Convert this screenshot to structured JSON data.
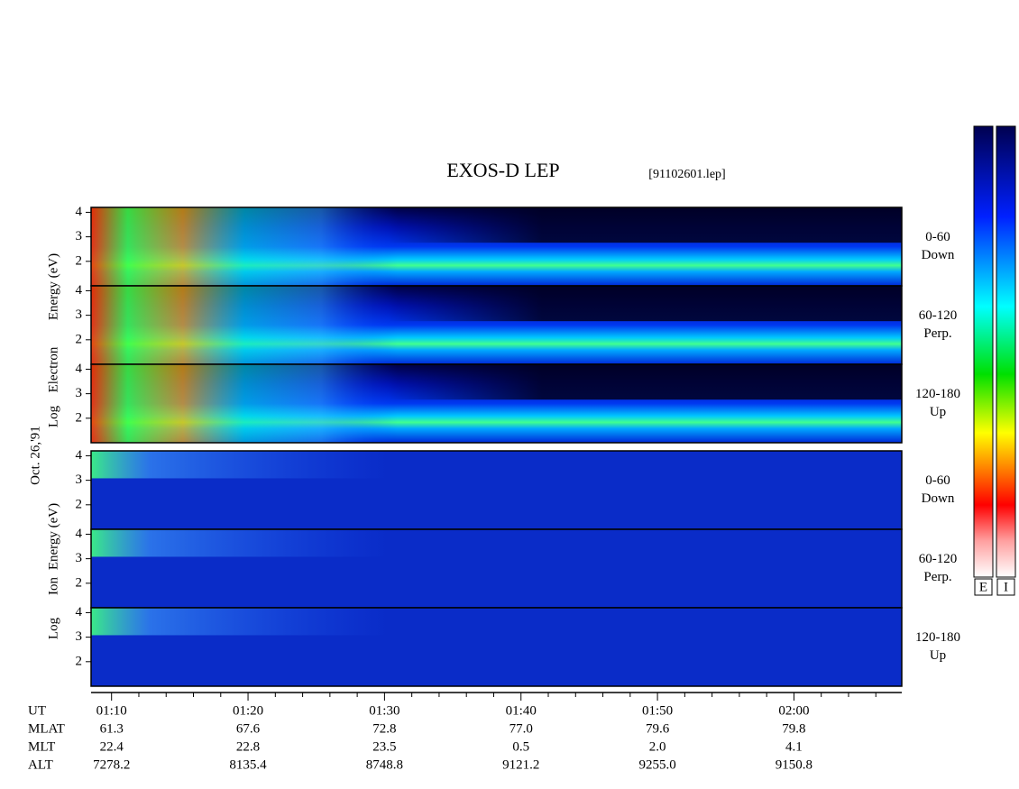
{
  "title": "EXOS-D LEP",
  "file_label": "[91102601.lep]",
  "date_label": "Oct. 26,'91",
  "electron_axis_labels": [
    "Log",
    "Electron",
    "Energy (eV)"
  ],
  "ion_axis_labels": [
    "Log",
    "Ion",
    "Energy (eV)"
  ],
  "panels": [
    {
      "species": "electron",
      "pitch_angle": "0-60",
      "direction": "Down",
      "ylim": [
        1,
        4.2
      ],
      "yticks": [
        2,
        3,
        4
      ]
    },
    {
      "species": "electron",
      "pitch_angle": "60-120",
      "direction": "Perp.",
      "ylim": [
        1,
        4.2
      ],
      "yticks": [
        2,
        3,
        4
      ]
    },
    {
      "species": "electron",
      "pitch_angle": "120-180",
      "direction": "Up",
      "ylim": [
        1,
        4.2
      ],
      "yticks": [
        2,
        3,
        4
      ]
    },
    {
      "species": "ion",
      "pitch_angle": "0-60",
      "direction": "Down",
      "ylim": [
        1,
        4.2
      ],
      "yticks": [
        2,
        3,
        4
      ]
    },
    {
      "species": "ion",
      "pitch_angle": "60-120",
      "direction": "Perp.",
      "ylim": [
        1,
        4.2
      ],
      "yticks": [
        2,
        3,
        4
      ]
    },
    {
      "species": "ion",
      "pitch_angle": "120-180",
      "direction": "Up",
      "ylim": [
        1,
        4.2
      ],
      "yticks": [
        2,
        3,
        4
      ]
    }
  ],
  "time_axis": {
    "xlim": [
      68.5,
      127.9
    ],
    "xticks": [
      {
        "value": 70,
        "label": "01:10"
      },
      {
        "value": 80,
        "label": "01:20"
      },
      {
        "value": 90,
        "label": "01:30"
      },
      {
        "value": 100,
        "label": "01:40"
      },
      {
        "value": 110,
        "label": "01:50"
      },
      {
        "value": 120,
        "label": "02:00"
      }
    ],
    "minor_xticks": [
      72,
      74,
      76,
      78,
      82,
      84,
      86,
      88,
      92,
      94,
      96,
      98,
      102,
      104,
      106,
      108,
      112,
      114,
      116,
      118,
      122,
      124,
      126
    ]
  },
  "ephemeris": {
    "row_labels": [
      "UT",
      "MLAT",
      "MLT",
      "ALT"
    ],
    "rows": [
      [
        "61.3",
        "67.6",
        "72.8",
        "77.0",
        "79.6",
        "79.8"
      ],
      [
        "22.4",
        "22.8",
        "23.5",
        "0.5",
        "2.0",
        "4.1"
      ],
      [
        "7278.2",
        "8135.4",
        "8748.8",
        "9121.2",
        "9255.0",
        "9150.8"
      ]
    ]
  },
  "colorbar_labels": [
    "E",
    "I"
  ]
}
